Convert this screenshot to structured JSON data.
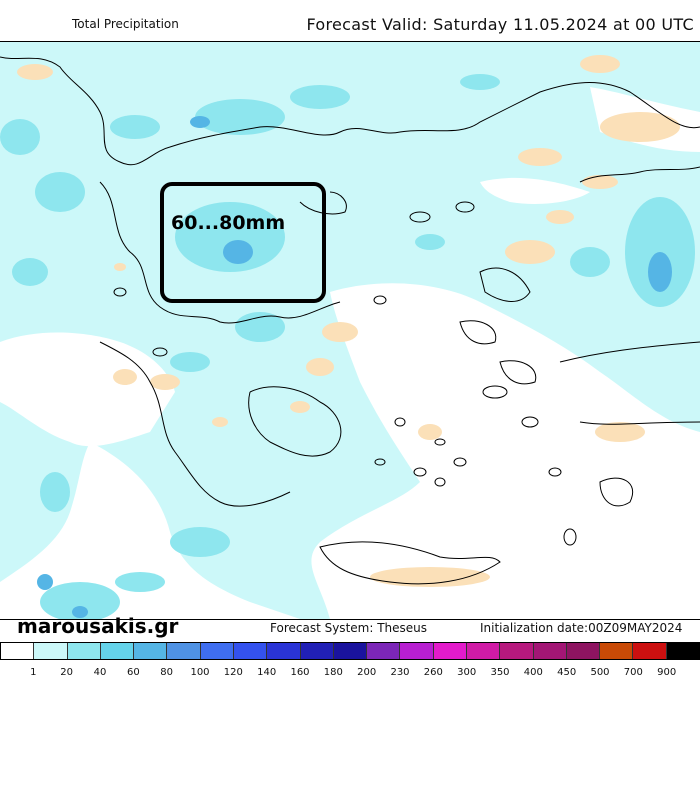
{
  "header": {
    "title": "Total Precipitation",
    "valid_label": "Forecast Valid:",
    "valid_date": "Saturday 11.05.2024 at 00 UTC"
  },
  "annotation": {
    "label": "60...80mm"
  },
  "footer": {
    "brand": "marousakis.gr",
    "system": "Forecast System: Theseus",
    "initialization": "Initialization date:00Z09MAY2024"
  },
  "colors": {
    "land_bg": "#ccf8f9",
    "sea": "#ffffff",
    "light": "#fbe0b8",
    "mid": "#8ee6ee",
    "heavy": "#4fb2e6"
  },
  "legend": {
    "ticks": [
      "1",
      "20",
      "40",
      "60",
      "80",
      "100",
      "120",
      "140",
      "160",
      "180",
      "200",
      "230",
      "260",
      "300",
      "350",
      "400",
      "450",
      "500",
      "700",
      "900"
    ],
    "colors": [
      "#ffffff",
      "#ccf8f9",
      "#8ee6ee",
      "#65d3ea",
      "#55b5e5",
      "#4f92e4",
      "#3f6ef0",
      "#3452ee",
      "#2a34d6",
      "#2120b6",
      "#1a139e",
      "#7c26b8",
      "#b81fd1",
      "#e31bcb",
      "#d01ba6",
      "#b7197e",
      "#a31675",
      "#8e1461",
      "#c94a06",
      "#cc1010",
      "#000000"
    ]
  }
}
